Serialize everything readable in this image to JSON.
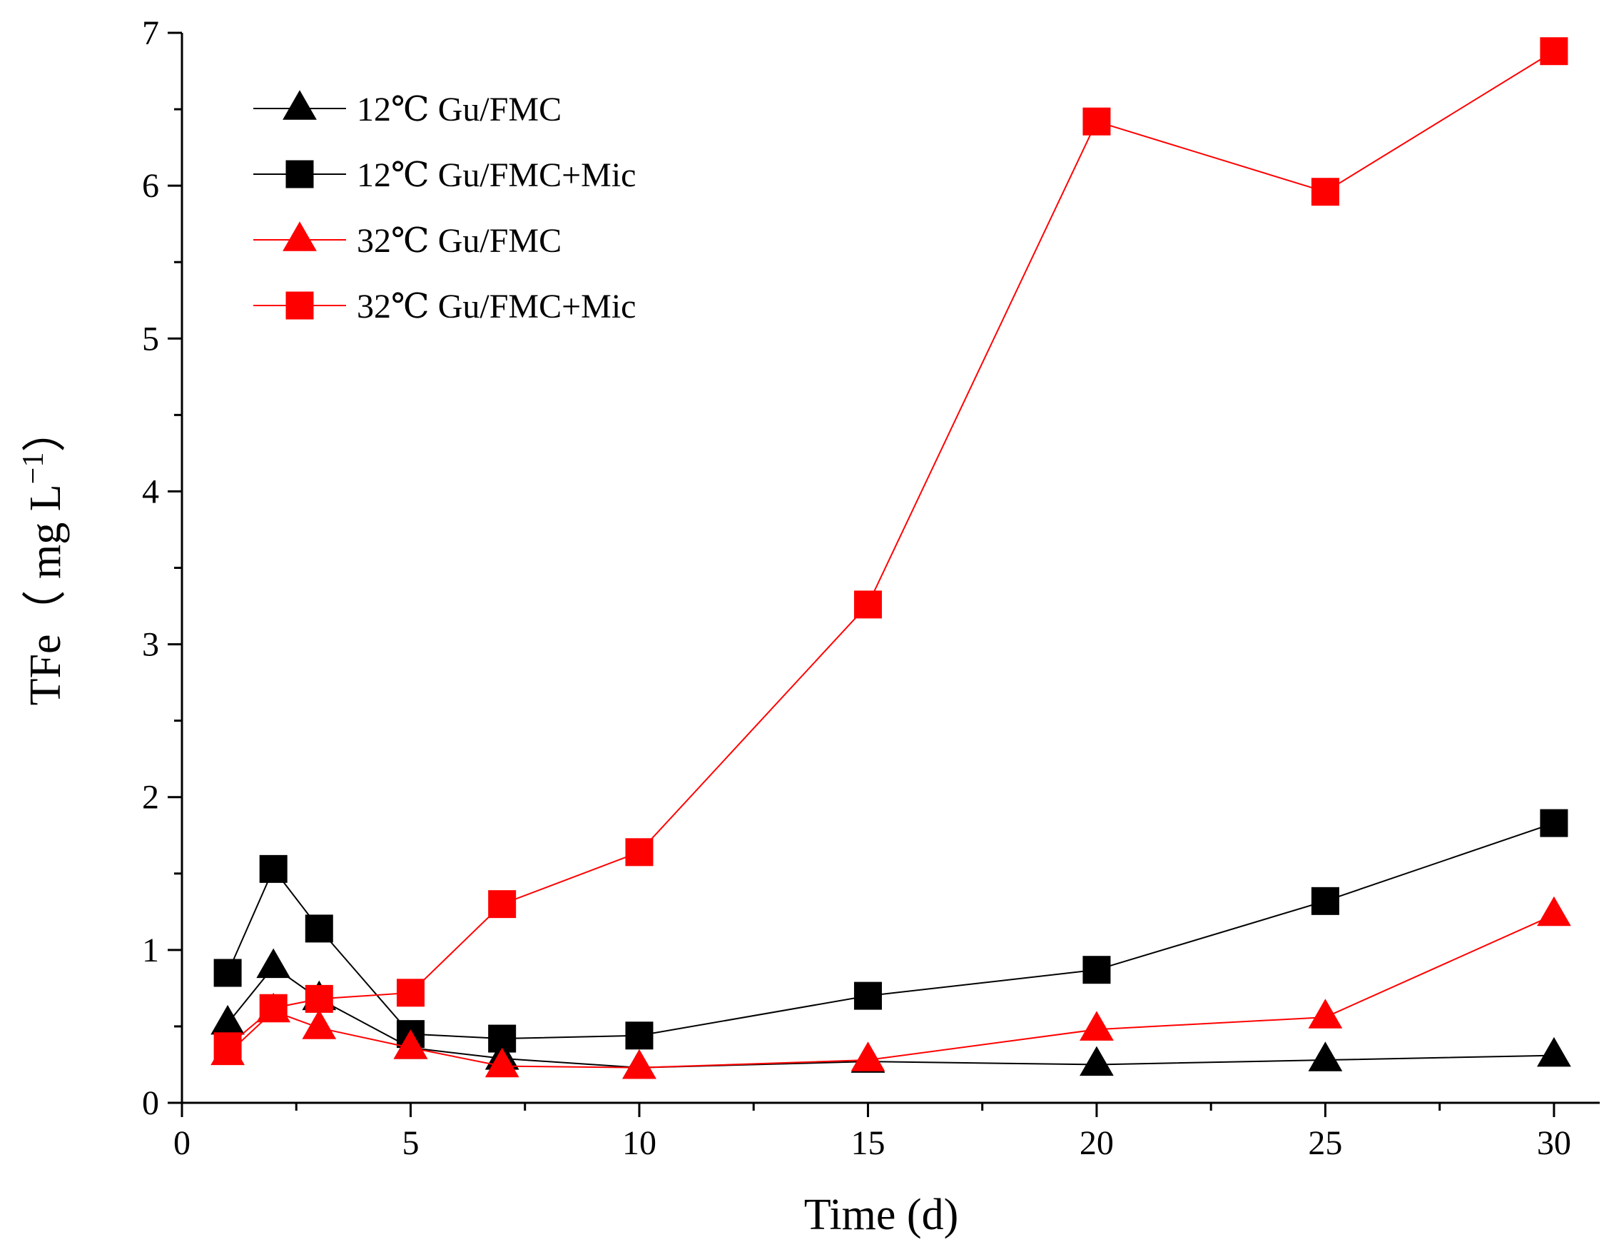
{
  "chart_data": {
    "type": "line",
    "title": "",
    "xlabel": "Time (d)",
    "ylabel_parts": {
      "prefix": "TFe（ mg L",
      "superscript": "−1",
      "suffix": "）"
    },
    "xlim": [
      0,
      31
    ],
    "ylim": [
      0,
      7
    ],
    "xticks": [
      0,
      5,
      10,
      15,
      20,
      25,
      30
    ],
    "yticks": [
      0,
      1,
      2,
      3,
      4,
      5,
      6,
      7
    ],
    "legend_position": "top-left",
    "grid": false,
    "x": [
      1,
      2,
      3,
      5,
      7,
      10,
      15,
      20,
      25,
      30
    ],
    "series": [
      {
        "name": "12℃  Gu/FMC",
        "color": "#000000",
        "marker": "triangle",
        "values": [
          0.52,
          0.89,
          0.68,
          0.36,
          0.29,
          0.23,
          0.27,
          0.25,
          0.28,
          0.31
        ]
      },
      {
        "name": "12℃  Gu/FMC+Mic",
        "color": "#000000",
        "marker": "square",
        "values": [
          0.85,
          1.53,
          1.14,
          0.45,
          0.42,
          0.44,
          0.7,
          0.87,
          1.32,
          1.83
        ]
      },
      {
        "name": "32℃  Gu/FMC",
        "color": "#ff0000",
        "marker": "triangle",
        "values": [
          0.32,
          0.6,
          0.49,
          0.36,
          0.24,
          0.23,
          0.28,
          0.48,
          0.56,
          1.23
        ]
      },
      {
        "name": "32℃  Gu/FMC+Mic",
        "color": "#ff0000",
        "marker": "square",
        "values": [
          0.37,
          0.62,
          0.68,
          0.72,
          1.3,
          1.64,
          3.26,
          6.42,
          5.96,
          6.88
        ]
      }
    ]
  }
}
